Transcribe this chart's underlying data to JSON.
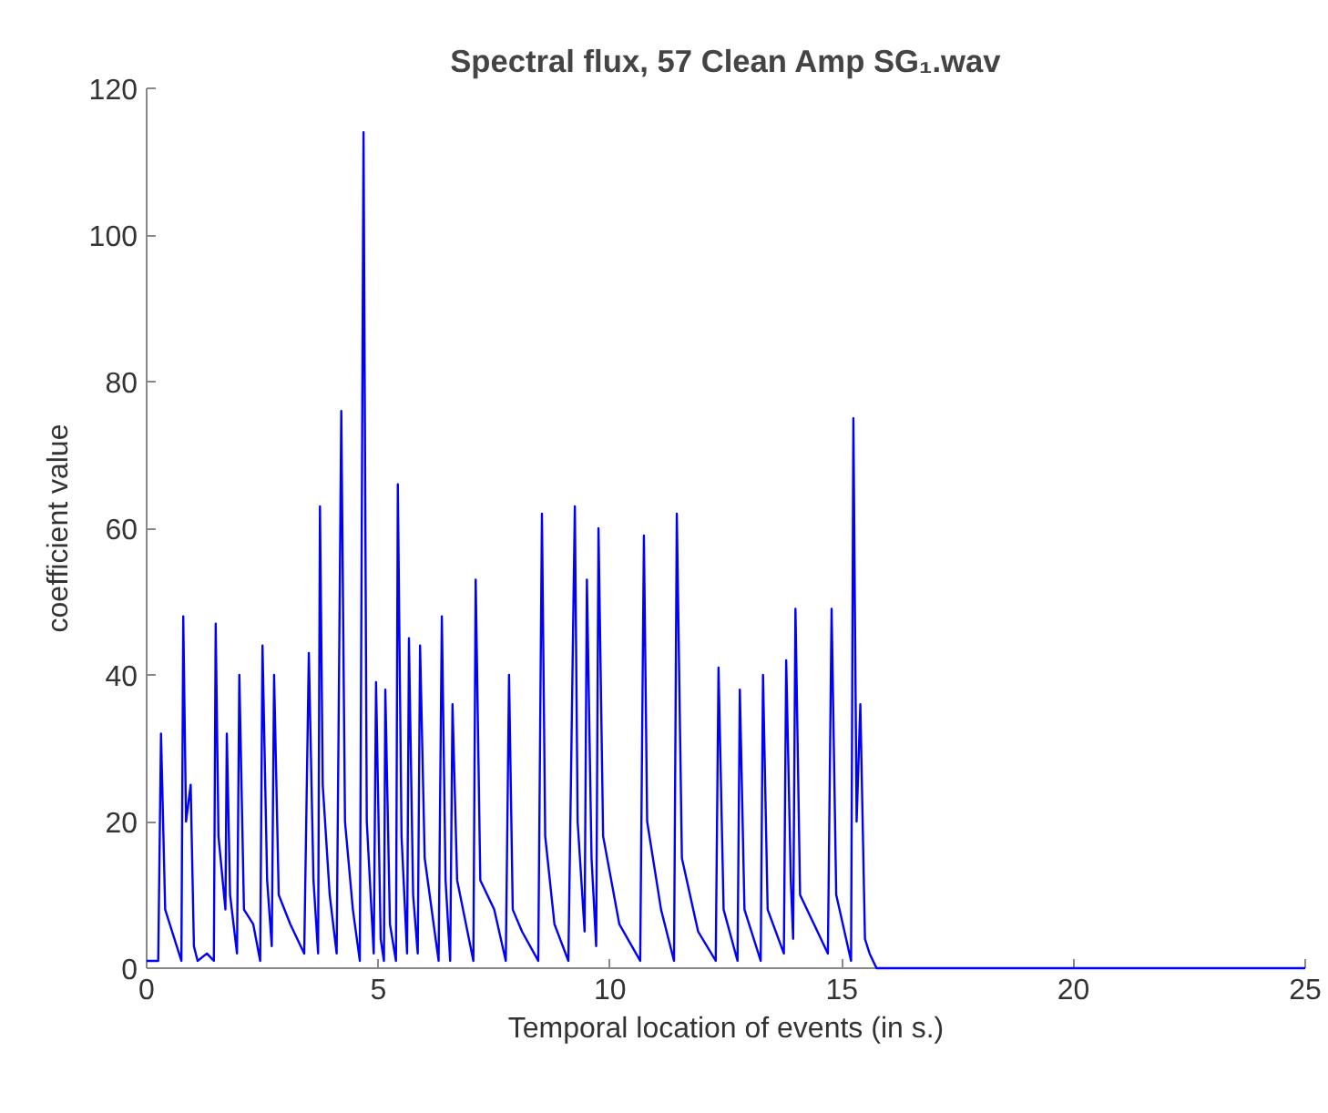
{
  "chart_data": {
    "type": "line",
    "title": "Spectral flux, 57 Clean Amp SG₁.wav",
    "xlabel": "Temporal location of events (in s.)",
    "ylabel": "coefficient value",
    "x": [
      0,
      0.25,
      0.31,
      0.4,
      0.6,
      0.75,
      0.79,
      0.85,
      0.95,
      1.02,
      1.1,
      1.3,
      1.45,
      1.49,
      1.55,
      1.7,
      1.73,
      1.8,
      1.95,
      2.0,
      2.1,
      2.3,
      2.45,
      2.5,
      2.6,
      2.7,
      2.75,
      2.85,
      3.1,
      3.4,
      3.5,
      3.6,
      3.7,
      3.74,
      3.8,
      3.95,
      4.1,
      4.2,
      4.28,
      4.45,
      4.6,
      4.68,
      4.75,
      4.9,
      4.95,
      5.05,
      5.12,
      5.15,
      5.25,
      5.38,
      5.42,
      5.5,
      5.62,
      5.66,
      5.75,
      5.85,
      5.9,
      6.0,
      6.3,
      6.37,
      6.45,
      6.55,
      6.6,
      6.7,
      7.05,
      7.1,
      7.2,
      7.5,
      7.75,
      7.82,
      7.9,
      8.1,
      8.45,
      8.53,
      8.6,
      8.8,
      9.1,
      9.24,
      9.3,
      9.45,
      9.5,
      9.6,
      9.7,
      9.75,
      9.85,
      10.2,
      10.65,
      10.73,
      10.8,
      11.1,
      11.38,
      11.44,
      11.55,
      11.9,
      12.28,
      12.34,
      12.45,
      12.75,
      12.8,
      12.9,
      13.25,
      13.3,
      13.4,
      13.75,
      13.8,
      13.9,
      13.95,
      14.0,
      14.1,
      14.7,
      14.78,
      14.88,
      15.2,
      15.25,
      15.32,
      15.4,
      15.5,
      15.6,
      15.75,
      17,
      20,
      25
    ],
    "series": [
      {
        "color": "#0000ff",
        "values": [
          1,
          1,
          32,
          8,
          4,
          1,
          48,
          20,
          25,
          3,
          1,
          2,
          1,
          47,
          18,
          8,
          32,
          10,
          2,
          40,
          8,
          6,
          1,
          44,
          12,
          3,
          40,
          10,
          6,
          2,
          43,
          12,
          2,
          63,
          25,
          10,
          2,
          76,
          20,
          8,
          1,
          114,
          20,
          2,
          39,
          4,
          1,
          38,
          6,
          1,
          66,
          18,
          2,
          45,
          10,
          2,
          44,
          15,
          1,
          48,
          12,
          1,
          36,
          12,
          1,
          53,
          12,
          8,
          1,
          40,
          8,
          5,
          1,
          62,
          18,
          6,
          1,
          63,
          20,
          5,
          53,
          15,
          3,
          60,
          18,
          6,
          1,
          59,
          20,
          8,
          1,
          62,
          15,
          5,
          1,
          41,
          8,
          1,
          38,
          8,
          1,
          40,
          8,
          2,
          42,
          12,
          4,
          49,
          10,
          2,
          49,
          10,
          1,
          75,
          20,
          36,
          4,
          2,
          0,
          0,
          0,
          0
        ]
      }
    ],
    "xlim": [
      0,
      25
    ],
    "ylim": [
      0,
      120
    ],
    "xticks": [
      0,
      5,
      10,
      15,
      20,
      25
    ],
    "yticks": [
      0,
      20,
      40,
      60,
      80,
      100,
      120
    ],
    "grid": false,
    "marker": "none",
    "line_style": "solid"
  }
}
